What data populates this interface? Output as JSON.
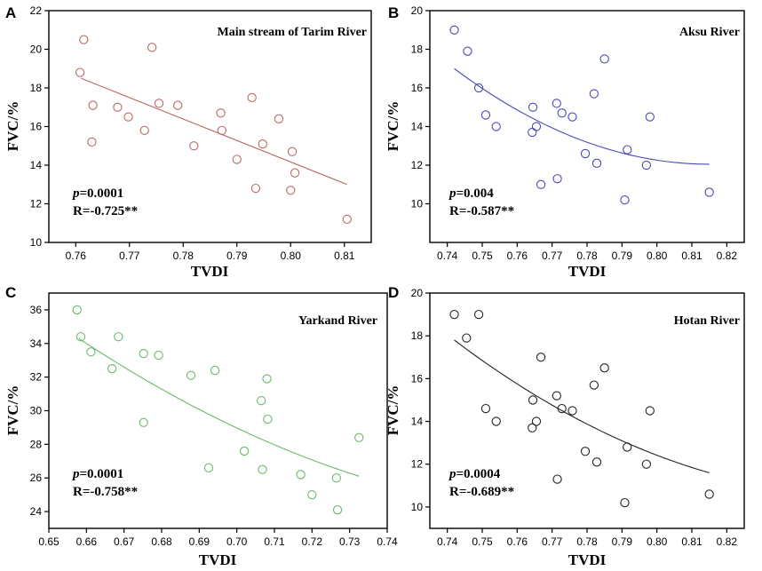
{
  "chart_data": [
    {
      "type": "scatter",
      "letter": "A",
      "title": "Main stream of Tarim River",
      "xlabel": "TVDI",
      "ylabel": "FVC/%",
      "xlim": [
        0.755,
        0.815
      ],
      "ylim": [
        10,
        22
      ],
      "xticks": [
        "0.76",
        "0.77",
        "0.78",
        "0.79",
        "0.80",
        "0.81"
      ],
      "yticks": [
        "10",
        "12",
        "14",
        "16",
        "18",
        "20",
        "22"
      ],
      "color": "#b96a64",
      "stat_p_label": "p",
      "stat_p_value": "=0.0001",
      "stat_r": "R=-0.725**",
      "fit": {
        "form": "linear",
        "x": [
          0.761,
          0.8105
        ],
        "y": [
          18.5,
          13.0
        ]
      },
      "points": [
        {
          "x": 0.7608,
          "y": 18.8
        },
        {
          "x": 0.7615,
          "y": 20.5
        },
        {
          "x": 0.763,
          "y": 15.2
        },
        {
          "x": 0.7632,
          "y": 17.1
        },
        {
          "x": 0.7678,
          "y": 17.0
        },
        {
          "x": 0.7698,
          "y": 16.5
        },
        {
          "x": 0.7728,
          "y": 15.8
        },
        {
          "x": 0.7742,
          "y": 20.1
        },
        {
          "x": 0.7755,
          "y": 17.2
        },
        {
          "x": 0.779,
          "y": 17.1
        },
        {
          "x": 0.782,
          "y": 15.0
        },
        {
          "x": 0.787,
          "y": 16.7
        },
        {
          "x": 0.7872,
          "y": 15.8
        },
        {
          "x": 0.79,
          "y": 14.3
        },
        {
          "x": 0.7928,
          "y": 17.5
        },
        {
          "x": 0.7935,
          "y": 12.8
        },
        {
          "x": 0.7948,
          "y": 15.1
        },
        {
          "x": 0.7978,
          "y": 16.4
        },
        {
          "x": 0.8,
          "y": 12.7
        },
        {
          "x": 0.8003,
          "y": 14.7
        },
        {
          "x": 0.8008,
          "y": 13.6
        },
        {
          "x": 0.8105,
          "y": 11.2
        }
      ]
    },
    {
      "type": "scatter",
      "letter": "B",
      "title": "Aksu River",
      "xlabel": "TVDI",
      "ylabel": "FVC/%",
      "xlim": [
        0.735,
        0.825
      ],
      "ylim": [
        8,
        20
      ],
      "xticks": [
        "0.74",
        "0.75",
        "0.76",
        "0.77",
        "0.78",
        "0.79",
        "0.80",
        "0.81",
        "0.82"
      ],
      "yticks": [
        "10",
        "12",
        "14",
        "16",
        "18",
        "20"
      ],
      "color": "#4a4ab5",
      "stat_p_label": "p",
      "stat_p_value": "=0.004",
      "stat_r": "R=-0.587**",
      "fit": {
        "form": "poly2",
        "x": [
          0.742,
          0.815
        ],
        "coef": [
          12.04,
          0.0,
          4.96
        ]
      },
      "points": [
        {
          "x": 0.742,
          "y": 19.0
        },
        {
          "x": 0.7458,
          "y": 17.9
        },
        {
          "x": 0.749,
          "y": 16.0
        },
        {
          "x": 0.751,
          "y": 14.6
        },
        {
          "x": 0.754,
          "y": 14.0
        },
        {
          "x": 0.7643,
          "y": 13.7
        },
        {
          "x": 0.7645,
          "y": 15.0
        },
        {
          "x": 0.7655,
          "y": 14.0
        },
        {
          "x": 0.7668,
          "y": 11.0
        },
        {
          "x": 0.7713,
          "y": 15.2
        },
        {
          "x": 0.7715,
          "y": 11.3
        },
        {
          "x": 0.7728,
          "y": 14.7
        },
        {
          "x": 0.7758,
          "y": 14.5
        },
        {
          "x": 0.7795,
          "y": 12.6
        },
        {
          "x": 0.782,
          "y": 15.7
        },
        {
          "x": 0.7828,
          "y": 12.1
        },
        {
          "x": 0.785,
          "y": 17.5
        },
        {
          "x": 0.7908,
          "y": 10.2
        },
        {
          "x": 0.7915,
          "y": 12.8
        },
        {
          "x": 0.797,
          "y": 12.0
        },
        {
          "x": 0.798,
          "y": 14.5
        },
        {
          "x": 0.815,
          "y": 10.6
        }
      ]
    },
    {
      "type": "scatter",
      "letter": "C",
      "title": "Yarkand River",
      "xlabel": "TVDI",
      "ylabel": "FVC/%",
      "xlim": [
        0.65,
        0.74
      ],
      "ylim": [
        23,
        37
      ],
      "xticks": [
        "0.65",
        "0.66",
        "0.67",
        "0.68",
        "0.69",
        "0.70",
        "0.71",
        "0.72",
        "0.73",
        "0.74"
      ],
      "yticks": [
        "24",
        "26",
        "28",
        "30",
        "32",
        "34",
        "36"
      ],
      "color": "#6db86d",
      "stat_p_label": "p",
      "stat_p_value": "=0.0001",
      "stat_r": "R=-0.758**",
      "fit": {
        "form": "poly2",
        "x": [
          0.658,
          0.7325
        ],
        "coef": [
          34.26,
          -5.8,
          2.4
        ]
      },
      "points": [
        {
          "x": 0.6575,
          "y": 36.0
        },
        {
          "x": 0.6585,
          "y": 34.4
        },
        {
          "x": 0.6612,
          "y": 33.5
        },
        {
          "x": 0.6668,
          "y": 32.5
        },
        {
          "x": 0.6685,
          "y": 34.4
        },
        {
          "x": 0.6752,
          "y": 33.4
        },
        {
          "x": 0.6752,
          "y": 29.3
        },
        {
          "x": 0.6792,
          "y": 33.3
        },
        {
          "x": 0.6878,
          "y": 32.1
        },
        {
          "x": 0.6925,
          "y": 26.6
        },
        {
          "x": 0.6942,
          "y": 32.4
        },
        {
          "x": 0.702,
          "y": 27.6
        },
        {
          "x": 0.7065,
          "y": 30.6
        },
        {
          "x": 0.7068,
          "y": 26.5
        },
        {
          "x": 0.708,
          "y": 31.9
        },
        {
          "x": 0.7082,
          "y": 29.5
        },
        {
          "x": 0.717,
          "y": 26.2
        },
        {
          "x": 0.72,
          "y": 25.0
        },
        {
          "x": 0.7265,
          "y": 26.0
        },
        {
          "x": 0.7268,
          "y": 24.1
        },
        {
          "x": 0.7325,
          "y": 28.4
        }
      ]
    },
    {
      "type": "scatter",
      "letter": "D",
      "title": "Hotan River",
      "xlabel": "TVDI",
      "ylabel": "FVC/%",
      "xlim": [
        0.735,
        0.825
      ],
      "ylim": [
        9,
        20
      ],
      "xticks": [
        "0.74",
        "0.75",
        "0.76",
        "0.77",
        "0.78",
        "0.79",
        "0.80",
        "0.81",
        "0.82"
      ],
      "yticks": [
        "10",
        "12",
        "14",
        "16",
        "18",
        "20"
      ],
      "color": "#222222",
      "stat_p_label": "p",
      "stat_p_value": "=0.0004",
      "stat_r": "R=-0.689**",
      "fit": {
        "form": "poly2",
        "x": [
          0.742,
          0.815
        ],
        "coef": [
          17.8,
          -8.7,
          2.5
        ]
      },
      "points": [
        {
          "x": 0.742,
          "y": 19.0
        },
        {
          "x": 0.7455,
          "y": 17.9
        },
        {
          "x": 0.749,
          "y": 19.0
        },
        {
          "x": 0.751,
          "y": 14.6
        },
        {
          "x": 0.754,
          "y": 14.0
        },
        {
          "x": 0.7643,
          "y": 13.7
        },
        {
          "x": 0.7645,
          "y": 15.0
        },
        {
          "x": 0.7655,
          "y": 14.0
        },
        {
          "x": 0.7668,
          "y": 17.0
        },
        {
          "x": 0.7713,
          "y": 15.2
        },
        {
          "x": 0.7715,
          "y": 11.3
        },
        {
          "x": 0.7728,
          "y": 14.6
        },
        {
          "x": 0.7758,
          "y": 14.5
        },
        {
          "x": 0.7795,
          "y": 12.6
        },
        {
          "x": 0.782,
          "y": 15.7
        },
        {
          "x": 0.7828,
          "y": 12.1
        },
        {
          "x": 0.785,
          "y": 16.5
        },
        {
          "x": 0.7908,
          "y": 10.2
        },
        {
          "x": 0.7915,
          "y": 12.8
        },
        {
          "x": 0.797,
          "y": 12.0
        },
        {
          "x": 0.798,
          "y": 14.5
        },
        {
          "x": 0.815,
          "y": 10.6
        }
      ]
    }
  ]
}
